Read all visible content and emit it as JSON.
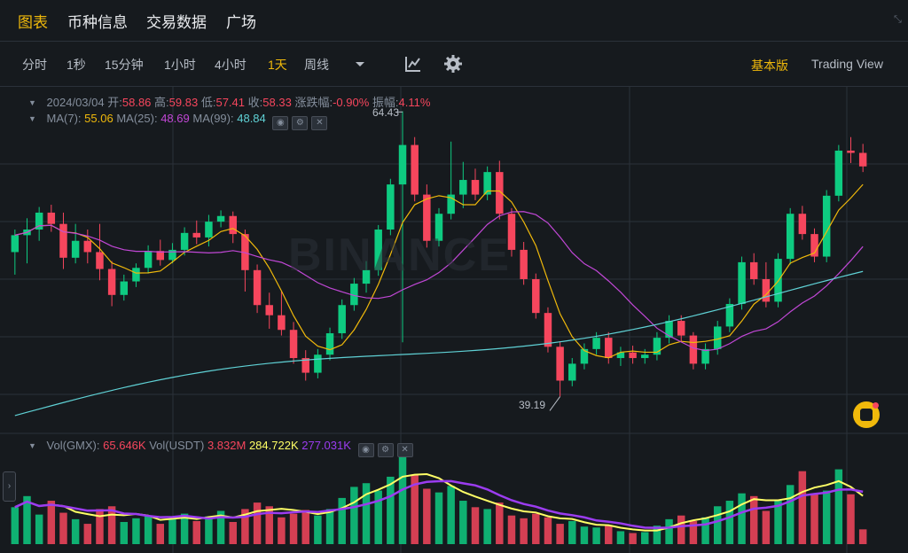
{
  "tabs": [
    {
      "label": "图表",
      "active": true
    },
    {
      "label": "币种信息",
      "active": false
    },
    {
      "label": "交易数据",
      "active": false
    },
    {
      "label": "广场",
      "active": false
    }
  ],
  "toolbar": {
    "timeframes": [
      {
        "label": "分时",
        "active": false
      },
      {
        "label": "1秒",
        "active": false
      },
      {
        "label": "15分钟",
        "active": false
      },
      {
        "label": "1小时",
        "active": false
      },
      {
        "label": "4小时",
        "active": false
      },
      {
        "label": "1天",
        "active": true
      },
      {
        "label": "周线",
        "active": false
      }
    ],
    "modes": [
      {
        "label": "基本版",
        "active": true
      },
      {
        "label": "Trading View",
        "active": false
      }
    ]
  },
  "ohlc": {
    "date": "2024/03/04",
    "open_label": "开:",
    "open": "58.86",
    "high_label": "高:",
    "high": "59.83",
    "low_label": "低:",
    "low": "57.41",
    "close_label": "收:",
    "close": "58.33",
    "change_label": "涨跌幅:",
    "change": "-0.90%",
    "amp_label": "振幅:",
    "amp": "4.11%"
  },
  "ma": {
    "ma7_label": "MA(7):",
    "ma7": "55.06",
    "ma25_label": "MA(25):",
    "ma25": "48.69",
    "ma99_label": "MA(99):",
    "ma99": "48.84"
  },
  "vol": {
    "gmx_label": "Vol(GMX):",
    "gmx": "65.646K",
    "usdt_label": "Vol(USDT)",
    "usdt": "3.832M",
    "ma1": "284.722K",
    "ma2": "277.031K"
  },
  "watermark": "BINANCE",
  "price_markers": {
    "high": "64.43",
    "low": "39.19"
  },
  "colors": {
    "up": "#0ecb81",
    "down": "#f6465d",
    "ma7": "#f0b90b",
    "ma25": "#c147d6",
    "ma99": "#5fd1d5",
    "vol_ma1": "#ffff66",
    "vol_ma2": "#9b3cf0",
    "accent": "#f0b90b"
  },
  "chart_data": {
    "type": "candlestick",
    "y_range": [
      36.0,
      66.5
    ],
    "candles": [
      [
        52,
        54,
        50,
        53.5
      ],
      [
        53.5,
        55,
        51,
        54
      ],
      [
        54,
        56,
        53,
        55.5
      ],
      [
        55.5,
        56.2,
        53.8,
        54.5
      ],
      [
        54.5,
        55.5,
        50.5,
        51.5
      ],
      [
        51.5,
        54.5,
        51,
        53
      ],
      [
        53,
        54,
        51,
        52
      ],
      [
        52,
        54.5,
        49.5,
        50.5
      ],
      [
        50.5,
        51.2,
        47.2,
        48.2
      ],
      [
        48.2,
        50,
        47.7,
        49.4
      ],
      [
        49.4,
        51,
        48.9,
        50.6
      ],
      [
        50.6,
        52.6,
        50.1,
        52.1
      ],
      [
        52.1,
        53.1,
        50.8,
        51.3
      ],
      [
        51.3,
        52.8,
        51,
        52.2
      ],
      [
        52.2,
        54.2,
        51.7,
        53.7
      ],
      [
        53.7,
        54.8,
        52.7,
        53.3
      ],
      [
        53.3,
        55.3,
        52.5,
        54.7
      ],
      [
        54.7,
        55.7,
        54.2,
        55.2
      ],
      [
        55.2,
        55.6,
        52.8,
        53.6
      ],
      [
        53.6,
        54,
        48.5,
        50.4
      ],
      [
        50.4,
        50.9,
        46.6,
        47.3
      ],
      [
        47.3,
        48.4,
        45.2,
        46.4
      ],
      [
        46.4,
        48.5,
        44.6,
        45.1
      ],
      [
        45.1,
        45.8,
        42.1,
        42.6
      ],
      [
        42.6,
        43.3,
        40.6,
        41.3
      ],
      [
        41.3,
        43.4,
        40.8,
        42.9
      ],
      [
        42.9,
        45.3,
        42.4,
        44.8
      ],
      [
        44.8,
        47.8,
        44.3,
        47.3
      ],
      [
        47.3,
        49.7,
        46.8,
        49.2
      ],
      [
        49.2,
        51.2,
        48.4,
        50.4
      ],
      [
        50.4,
        54.4,
        49.9,
        54
      ],
      [
        54,
        58.5,
        53.5,
        58
      ],
      [
        58,
        64.5,
        44,
        61.5
      ],
      [
        61.5,
        62.2,
        56.5,
        57.1
      ],
      [
        57.1,
        58,
        52.4,
        53
      ],
      [
        53,
        55.9,
        52.5,
        55.4
      ],
      [
        55.4,
        61.8,
        54.9,
        57.1
      ],
      [
        57.1,
        60,
        55.9,
        58.4
      ],
      [
        58.4,
        59.4,
        56.6,
        57.1
      ],
      [
        57.1,
        59.6,
        56.6,
        59.1
      ],
      [
        59.1,
        60.1,
        54.9,
        55.4
      ],
      [
        55.4,
        55.9,
        51.6,
        52.2
      ],
      [
        52.2,
        52.9,
        49.1,
        49.6
      ],
      [
        49.6,
        50.1,
        46.1,
        46.6
      ],
      [
        46.6,
        47.1,
        43.1,
        43.6
      ],
      [
        43.6,
        44.1,
        39.2,
        40.6
      ],
      [
        40.6,
        42.6,
        40.1,
        42.1
      ],
      [
        42.1,
        43.9,
        41.6,
        43.4
      ],
      [
        43.4,
        44.9,
        42.9,
        44.4
      ],
      [
        44.4,
        44.9,
        42.1,
        42.6
      ],
      [
        42.6,
        43.6,
        41.9,
        43.1
      ],
      [
        43.1,
        43.7,
        42.1,
        42.6
      ],
      [
        42.6,
        43.4,
        42.1,
        42.9
      ],
      [
        42.9,
        44.9,
        42.4,
        44.4
      ],
      [
        44.4,
        46.4,
        43.9,
        45.9
      ],
      [
        45.9,
        46.4,
        44.1,
        44.6
      ],
      [
        44.6,
        44.9,
        41.6,
        42.1
      ],
      [
        42.1,
        43.9,
        41.6,
        43.4
      ],
      [
        43.4,
        45.9,
        42.9,
        45.4
      ],
      [
        45.4,
        47.9,
        44.9,
        47.4
      ],
      [
        47.4,
        51.6,
        46.9,
        51.1
      ],
      [
        51.1,
        51.9,
        49.1,
        49.6
      ],
      [
        49.6,
        51.1,
        47.1,
        47.6
      ],
      [
        47.6,
        51.9,
        47.1,
        51.4
      ],
      [
        51.4,
        55.9,
        50.9,
        55.4
      ],
      [
        55.4,
        56.1,
        53.1,
        53.6
      ],
      [
        53.6,
        54.1,
        51.1,
        51.6
      ],
      [
        51.6,
        57.5,
        51.1,
        57
      ],
      [
        57,
        61.5,
        56.5,
        61
      ],
      [
        61,
        62.2,
        59.9,
        60.8
      ],
      [
        60.8,
        61.6,
        59.1,
        59.6
      ]
    ],
    "volumes": [
      0.4,
      0.52,
      0.32,
      0.47,
      0.34,
      0.27,
      0.22,
      0.38,
      0.41,
      0.24,
      0.28,
      0.31,
      0.22,
      0.29,
      0.33,
      0.25,
      0.3,
      0.36,
      0.24,
      0.38,
      0.45,
      0.41,
      0.29,
      0.33,
      0.37,
      0.31,
      0.38,
      0.5,
      0.62,
      0.66,
      0.58,
      0.73,
      0.95,
      0.75,
      0.6,
      0.56,
      0.63,
      0.47,
      0.4,
      0.38,
      0.45,
      0.31,
      0.28,
      0.33,
      0.29,
      0.22,
      0.25,
      0.19,
      0.18,
      0.2,
      0.14,
      0.12,
      0.13,
      0.2,
      0.27,
      0.31,
      0.25,
      0.29,
      0.41,
      0.47,
      0.55,
      0.52,
      0.36,
      0.47,
      0.64,
      0.79,
      0.55,
      0.58,
      0.81,
      0.54,
      0.16
    ],
    "ma7": "computed",
    "ma25": "computed",
    "ma99": "trend"
  }
}
